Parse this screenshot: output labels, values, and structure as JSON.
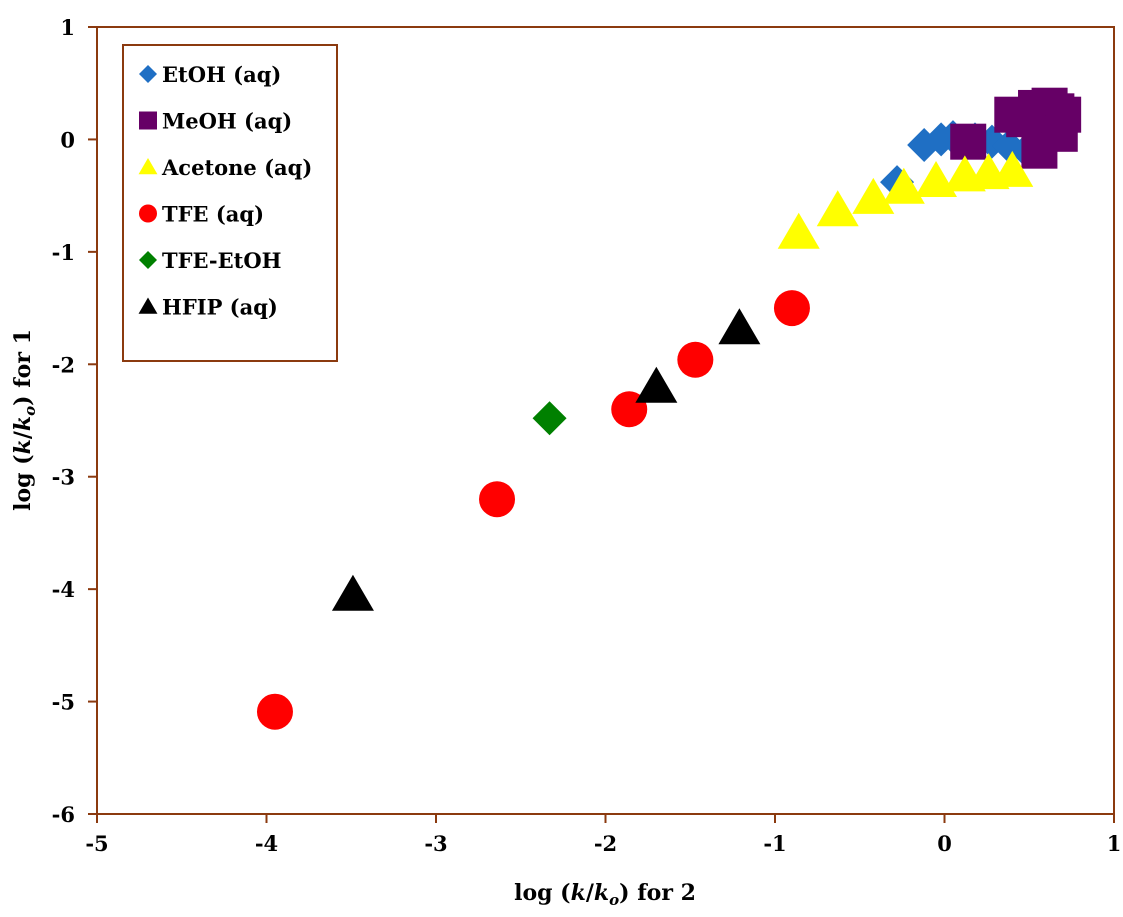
{
  "chart_data": {
    "type": "scatter",
    "title": "",
    "xlabel": {
      "prefix": "log (",
      "k": "k",
      "slash": "/",
      "k2": "k",
      "sub": "o",
      "suffix": ") for 2"
    },
    "ylabel": {
      "prefix": "log (",
      "k": "k",
      "slash": "/",
      "k2": "k",
      "sub": "o",
      "suffix": ") for 1"
    },
    "xlim": [
      -5,
      1
    ],
    "ylim": [
      -6,
      1
    ],
    "xticks": [
      -5,
      -4,
      -3,
      -2,
      -1,
      0,
      1
    ],
    "yticks": [
      1,
      0,
      -1,
      -2,
      -3,
      -4,
      -5,
      -6
    ],
    "grid": false,
    "legend_position": "top-left",
    "frame_color": "#8B3A0F",
    "series": [
      {
        "name": "EtOH (aq)",
        "marker": "diamond",
        "color": "#1F6FC4",
        "points": [
          [
            -0.28,
            -0.38
          ],
          [
            -0.12,
            -0.05
          ],
          [
            -0.02,
            0.0
          ],
          [
            0.05,
            0.02
          ],
          [
            0.18,
            0.0
          ],
          [
            0.28,
            -0.02
          ],
          [
            0.38,
            -0.06
          ],
          [
            0.48,
            -0.1
          ]
        ]
      },
      {
        "name": "MeOH (aq)",
        "marker": "square",
        "color": "#660066",
        "points": [
          [
            0.14,
            -0.02
          ],
          [
            0.4,
            0.22
          ],
          [
            0.47,
            0.18
          ],
          [
            0.54,
            0.28
          ],
          [
            0.58,
            0.22
          ],
          [
            0.62,
            0.3
          ],
          [
            0.66,
            0.25
          ],
          [
            0.7,
            0.22
          ],
          [
            0.56,
            -0.1
          ],
          [
            0.68,
            0.05
          ]
        ]
      },
      {
        "name": "Acetone (aq)",
        "marker": "triangle",
        "color": "#FFFF00",
        "points": [
          [
            -0.86,
            -0.83
          ],
          [
            -0.63,
            -0.63
          ],
          [
            -0.42,
            -0.52
          ],
          [
            -0.24,
            -0.43
          ],
          [
            -0.05,
            -0.37
          ],
          [
            0.12,
            -0.32
          ],
          [
            0.26,
            -0.3
          ],
          [
            0.4,
            -0.28
          ]
        ]
      },
      {
        "name": "TFE (aq)",
        "marker": "circle",
        "color": "#FF0000",
        "points": [
          [
            -3.95,
            -5.09
          ],
          [
            -2.64,
            -3.2
          ],
          [
            -1.86,
            -2.4
          ],
          [
            -1.47,
            -1.96
          ],
          [
            -0.9,
            -1.5
          ]
        ]
      },
      {
        "name": "TFE-EtOH",
        "marker": "diamond",
        "color": "#008000",
        "points": [
          [
            -2.33,
            -2.48
          ]
        ]
      },
      {
        "name": "HFIP (aq)",
        "marker": "triangle",
        "color": "#000000",
        "points": [
          [
            -3.49,
            -4.05
          ],
          [
            -1.7,
            -2.2
          ],
          [
            -1.21,
            -1.68
          ]
        ]
      }
    ]
  }
}
